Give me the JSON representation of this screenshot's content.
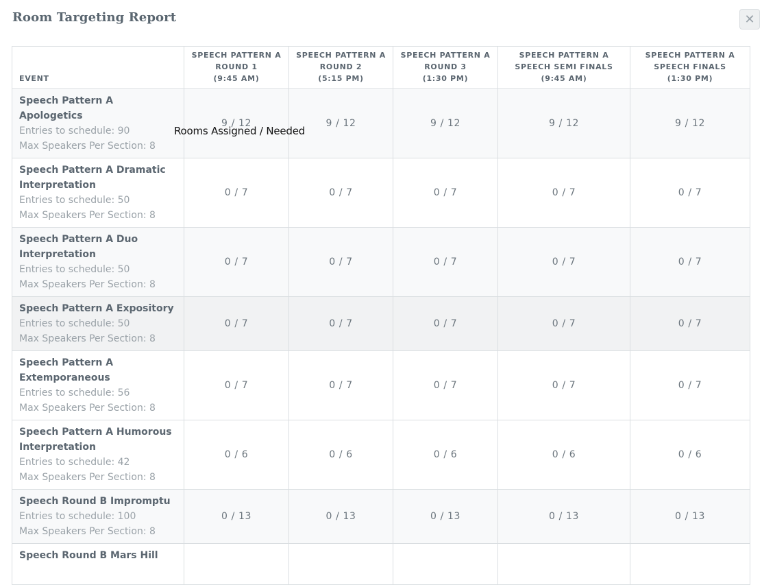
{
  "modal": {
    "title": "Room Targeting Report",
    "close_glyph": "✕"
  },
  "table": {
    "event_header": "EVENT",
    "round_headers": [
      [
        "SPEECH PATTERN A",
        "ROUND 1",
        "(9:45 AM)"
      ],
      [
        "SPEECH PATTERN A",
        "ROUND 2",
        "(5:15 PM)"
      ],
      [
        "SPEECH PATTERN A",
        "ROUND 3",
        "(1:30 PM)"
      ],
      [
        "SPEECH PATTERN A",
        "SPEECH SEMI FINALS",
        "(9:45 AM)"
      ],
      [
        "SPEECH PATTERN A",
        "SPEECH FINALS",
        "(1:30 PM)"
      ]
    ],
    "rows": [
      {
        "name": "Speech Pattern A Apologetics",
        "entries": "Entries to schedule: 90",
        "max": "Max Speakers Per Section: 8",
        "values": [
          "9 / 12",
          "9 / 12",
          "9 / 12",
          "9 / 12",
          "9 / 12"
        ]
      },
      {
        "name": "Speech Pattern A Dramatic Interpretation",
        "entries": "Entries to schedule: 50",
        "max": "Max Speakers Per Section: 8",
        "values": [
          "0 / 7",
          "0 / 7",
          "0 / 7",
          "0 / 7",
          "0 / 7"
        ]
      },
      {
        "name": "Speech Pattern A Duo Interpretation",
        "entries": "Entries to schedule: 50",
        "max": "Max Speakers Per Section: 8",
        "values": [
          "0 / 7",
          "0 / 7",
          "0 / 7",
          "0 / 7",
          "0 / 7"
        ]
      },
      {
        "name": "Speech Pattern A Expository",
        "entries": "Entries to schedule: 50",
        "max": "Max Speakers Per Section: 8",
        "values": [
          "0 / 7",
          "0 / 7",
          "0 / 7",
          "0 / 7",
          "0 / 7"
        ]
      },
      {
        "name": "Speech Pattern A Extemporaneous",
        "entries": "Entries to schedule: 56",
        "max": "Max Speakers Per Section: 8",
        "values": [
          "0 / 7",
          "0 / 7",
          "0 / 7",
          "0 / 7",
          "0 / 7"
        ]
      },
      {
        "name": "Speech Pattern A Humorous Interpretation",
        "entries": "Entries to schedule: 42",
        "max": "Max Speakers Per Section: 8",
        "values": [
          "0 / 6",
          "0 / 6",
          "0 / 6",
          "0 / 6",
          "0 / 6"
        ]
      },
      {
        "name": "Speech Round B Impromptu",
        "entries": "Entries to schedule: 100",
        "max": "Max Speakers Per Section: 8",
        "values": [
          "0 / 13",
          "0 / 13",
          "0 / 13",
          "0 / 13",
          "0 / 13"
        ]
      },
      {
        "name": "Speech Round B Mars Hill",
        "entries": "",
        "max": "",
        "values": [
          "",
          "",
          "",
          "",
          ""
        ]
      }
    ]
  },
  "tooltip": "Rooms Assigned / Needed",
  "hover_row_index": 3
}
